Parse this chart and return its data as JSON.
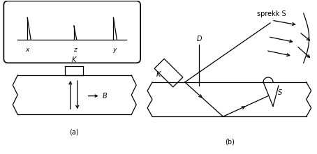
{
  "bg_color": "#ffffff",
  "line_color": "#000000",
  "fig_width": 4.54,
  "fig_height": 2.21,
  "labels": {
    "x": "x",
    "z": "z",
    "y": "y",
    "K_top": "K",
    "B": "B",
    "a_label": "(a)",
    "K_b": "K",
    "D_b": "D",
    "S_b": "S",
    "sprekk": "sprekk S",
    "b_label": "(b)"
  }
}
